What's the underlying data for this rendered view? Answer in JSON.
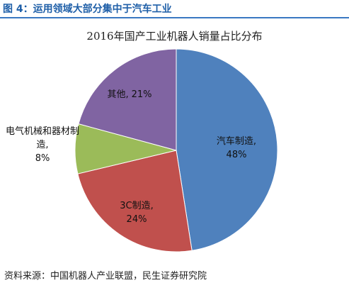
{
  "chart_data": {
    "type": "pie",
    "figure_label": "图 4：运用领域大部分集中于汽车工业",
    "title": "2016年国产工业机器人销量占比分布",
    "categories": [
      "汽车制造,",
      "3C制造,",
      "电气机械和器材制造,",
      "其他,"
    ],
    "values": [
      48,
      24,
      8,
      21
    ],
    "value_labels": [
      "48%",
      "24%",
      "8%",
      "21%"
    ],
    "colors": [
      "#4f81bd",
      "#c0504d",
      "#9bbb59",
      "#8064a2"
    ],
    "source": "资料来源：中国机器人产业联盟，民生证券研究院"
  }
}
